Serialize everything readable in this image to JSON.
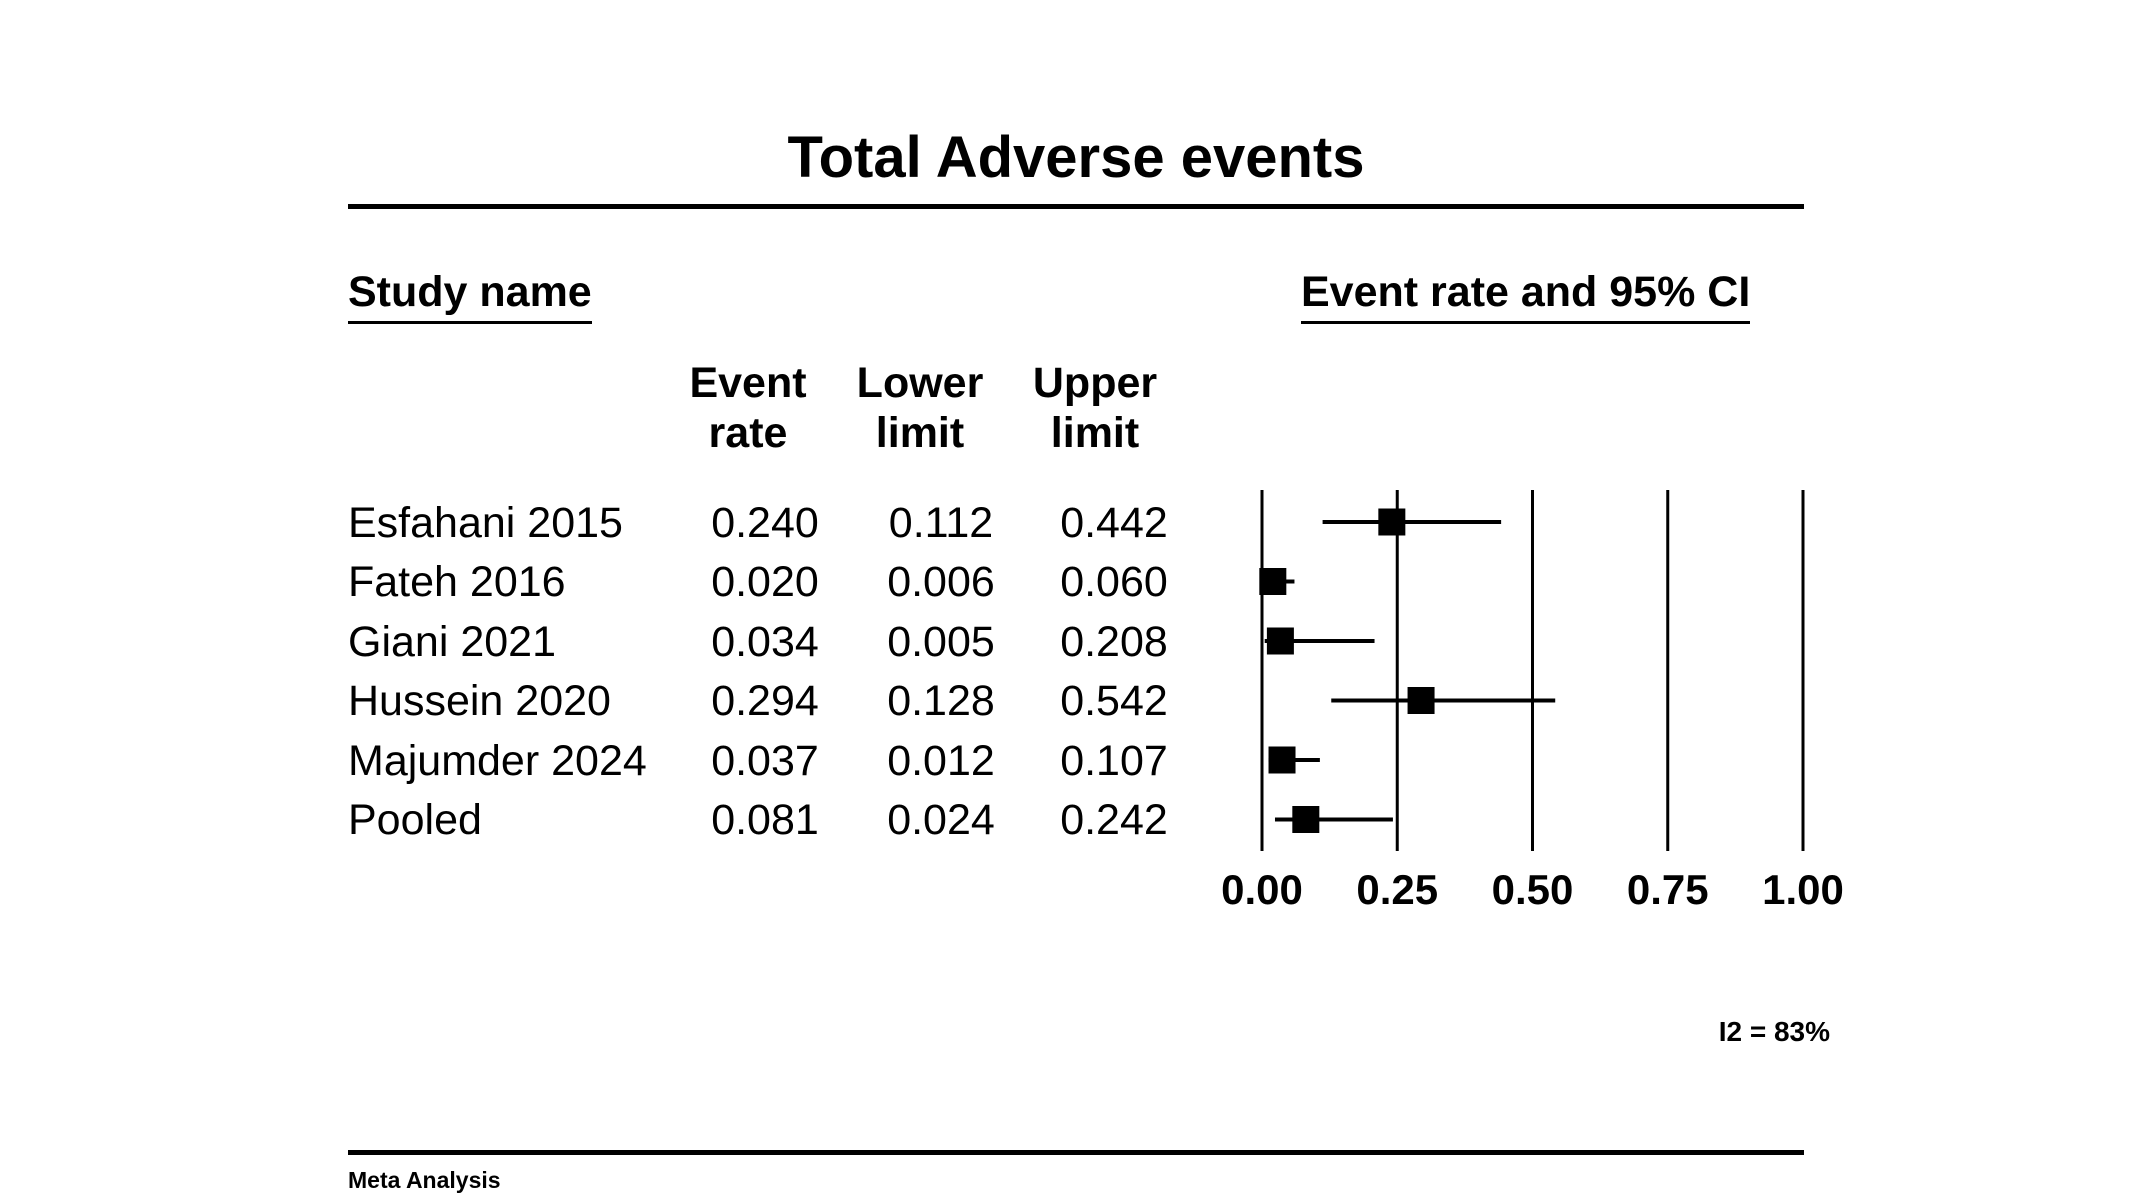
{
  "chart_data": {
    "type": "forest",
    "title": "Total Adverse events",
    "study_header": "Study name",
    "plot_header": "Event rate and 95% CI",
    "columns": {
      "event_rate": [
        "Event",
        "rate"
      ],
      "lower_limit": [
        "Lower",
        "limit"
      ],
      "upper_limit": [
        "Upper",
        "limit"
      ]
    },
    "rows": [
      {
        "study": "Esfahani 2015",
        "rate": "0.240",
        "lower": "0.112",
        "upper": "0.442",
        "rate_v": 0.24,
        "lower_v": 0.112,
        "upper_v": 0.442
      },
      {
        "study": "Fateh 2016",
        "rate": "0.020",
        "lower": "0.006",
        "upper": "0.060",
        "rate_v": 0.02,
        "lower_v": 0.006,
        "upper_v": 0.06
      },
      {
        "study": "Giani 2021",
        "rate": "0.034",
        "lower": "0.005",
        "upper": "0.208",
        "rate_v": 0.034,
        "lower_v": 0.005,
        "upper_v": 0.208
      },
      {
        "study": "Hussein 2020",
        "rate": "0.294",
        "lower": "0.128",
        "upper": "0.542",
        "rate_v": 0.294,
        "lower_v": 0.128,
        "upper_v": 0.542
      },
      {
        "study": "Majumder 2024",
        "rate": "0.037",
        "lower": "0.012",
        "upper": "0.107",
        "rate_v": 0.037,
        "lower_v": 0.012,
        "upper_v": 0.107
      },
      {
        "study": "Pooled",
        "rate": "0.081",
        "lower": "0.024",
        "upper": "0.242",
        "rate_v": 0.081,
        "lower_v": 0.024,
        "upper_v": 0.242
      }
    ],
    "x_ticks": [
      "0.00",
      "0.25",
      "0.50",
      "0.75",
      "1.00"
    ],
    "xlim": [
      0,
      1
    ],
    "grid": true,
    "heterogeneity": "I2 = 83%"
  },
  "footer": "Meta Analysis"
}
